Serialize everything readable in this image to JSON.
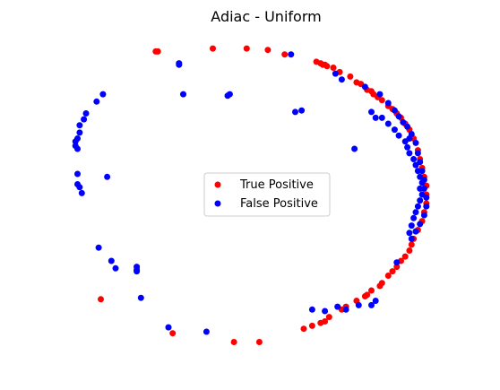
{
  "chart_data": {
    "type": "scatter",
    "title": "Adiac - Uniform",
    "xlabel": "",
    "ylabel": "",
    "axes_visible": false,
    "grid": false,
    "legend": {
      "placement": "center",
      "entries": [
        {
          "key": "tp",
          "label": "True Positive",
          "color": "#ff0000"
        },
        {
          "key": "fp",
          "label": "False Positive",
          "color": "#0000ff"
        }
      ]
    },
    "xlim": [
      -1.1,
      1.1
    ],
    "ylim": [
      -1.1,
      1.1
    ],
    "series": [
      {
        "key": "tp",
        "name": "True Positive",
        "color": "#ff0000",
        "points": [
          [
            -0.52,
            0.97
          ],
          [
            -0.51,
            0.97
          ],
          [
            -0.25,
            0.99
          ],
          [
            -0.09,
            0.99
          ],
          [
            0.01,
            0.98
          ],
          [
            0.09,
            0.95
          ],
          [
            0.24,
            0.9
          ],
          [
            0.26,
            0.89
          ],
          [
            0.27,
            0.88
          ],
          [
            0.28,
            0.88
          ],
          [
            0.29,
            0.87
          ],
          [
            0.32,
            0.86
          ],
          [
            0.35,
            0.83
          ],
          [
            0.4,
            0.8
          ],
          [
            0.43,
            0.76
          ],
          [
            0.45,
            0.75
          ],
          [
            0.48,
            0.71
          ],
          [
            0.5,
            0.7
          ],
          [
            0.51,
            0.68
          ],
          [
            0.53,
            0.66
          ],
          [
            0.55,
            0.64
          ],
          [
            0.58,
            0.6
          ],
          [
            0.6,
            0.58
          ],
          [
            0.62,
            0.55
          ],
          [
            0.64,
            0.52
          ],
          [
            0.66,
            0.48
          ],
          [
            0.68,
            0.44
          ],
          [
            0.7,
            0.38
          ],
          [
            0.72,
            0.3
          ],
          [
            0.73,
            0.24
          ],
          [
            0.74,
            0.18
          ],
          [
            0.75,
            0.12
          ],
          [
            0.76,
            0.06
          ],
          [
            0.76,
            0.0
          ],
          [
            0.76,
            -0.06
          ],
          [
            0.75,
            -0.12
          ],
          [
            0.74,
            -0.18
          ],
          [
            0.72,
            -0.24
          ],
          [
            0.7,
            -0.3
          ],
          [
            0.69,
            -0.34
          ],
          [
            0.68,
            -0.38
          ],
          [
            0.66,
            -0.42
          ],
          [
            0.64,
            -0.45
          ],
          [
            0.62,
            -0.49
          ],
          [
            0.6,
            -0.52
          ],
          [
            0.58,
            -0.55
          ],
          [
            0.55,
            -0.6
          ],
          [
            0.54,
            -0.62
          ],
          [
            0.5,
            -0.65
          ],
          [
            0.48,
            -0.68
          ],
          [
            0.47,
            -0.69
          ],
          [
            0.43,
            -0.72
          ],
          [
            0.38,
            -0.76
          ],
          [
            0.36,
            -0.78
          ],
          [
            0.3,
            -0.83
          ],
          [
            0.28,
            -0.86
          ],
          [
            0.26,
            -0.87
          ],
          [
            0.22,
            -0.89
          ],
          [
            0.18,
            -0.91
          ],
          [
            -0.15,
            -1.0
          ],
          [
            -0.03,
            -1.0
          ],
          [
            -0.44,
            -0.94
          ],
          [
            -0.78,
            -0.71
          ]
        ]
      },
      {
        "key": "fp",
        "name": "False Positive",
        "color": "#0000ff",
        "points": [
          [
            0.12,
            0.95
          ],
          [
            0.33,
            0.82
          ],
          [
            0.36,
            0.78
          ],
          [
            0.47,
            0.73
          ],
          [
            0.54,
            0.68
          ],
          [
            0.58,
            0.62
          ],
          [
            0.61,
            0.57
          ],
          [
            0.63,
            0.53
          ],
          [
            0.65,
            0.49
          ],
          [
            0.67,
            0.46
          ],
          [
            0.69,
            0.41
          ],
          [
            0.71,
            0.35
          ],
          [
            0.72,
            0.28
          ],
          [
            0.73,
            0.22
          ],
          [
            0.74,
            0.16
          ],
          [
            0.75,
            0.1
          ],
          [
            0.75,
            0.04
          ],
          [
            0.76,
            -0.02
          ],
          [
            0.76,
            -0.08
          ],
          [
            0.75,
            -0.14
          ],
          [
            0.73,
            -0.2
          ],
          [
            0.71,
            -0.25
          ],
          [
            0.69,
            -0.3
          ],
          [
            0.55,
            0.52
          ],
          [
            0.58,
            0.48
          ],
          [
            0.61,
            0.44
          ],
          [
            0.63,
            0.4
          ],
          [
            0.66,
            0.36
          ],
          [
            0.67,
            0.32
          ],
          [
            0.68,
            0.28
          ],
          [
            0.7,
            0.24
          ],
          [
            0.71,
            0.2
          ],
          [
            0.72,
            0.16
          ],
          [
            0.73,
            0.12
          ],
          [
            0.74,
            0.08
          ],
          [
            0.73,
            0.04
          ],
          [
            0.74,
            0.0
          ],
          [
            0.73,
            -0.04
          ],
          [
            0.72,
            -0.08
          ],
          [
            0.71,
            -0.12
          ],
          [
            0.7,
            -0.16
          ],
          [
            0.69,
            -0.21
          ],
          [
            0.68,
            -0.26
          ],
          [
            0.5,
            0.56
          ],
          [
            0.52,
            0.52
          ],
          [
            0.68,
            0.38
          ],
          [
            0.42,
            0.31
          ],
          [
            0.62,
            -0.46
          ],
          [
            0.52,
            -0.72
          ],
          [
            0.5,
            -0.75
          ],
          [
            0.44,
            -0.75
          ],
          [
            0.38,
            -0.78
          ],
          [
            0.34,
            -0.76
          ],
          [
            0.28,
            -0.79
          ],
          [
            0.22,
            -0.78
          ],
          [
            0.17,
            0.57
          ],
          [
            0.14,
            0.56
          ],
          [
            -0.17,
            0.68
          ],
          [
            -0.18,
            0.67
          ],
          [
            -0.39,
            0.68
          ],
          [
            -0.41,
            0.88
          ],
          [
            -0.41,
            0.89
          ],
          [
            -0.77,
            0.68
          ],
          [
            -0.8,
            0.63
          ],
          [
            -0.85,
            0.55
          ],
          [
            -0.86,
            0.51
          ],
          [
            -0.88,
            0.47
          ],
          [
            -0.88,
            0.42
          ],
          [
            -0.89,
            0.38
          ],
          [
            -0.9,
            0.36
          ],
          [
            -0.9,
            0.33
          ],
          [
            -0.89,
            0.31
          ],
          [
            -0.89,
            0.14
          ],
          [
            -0.89,
            0.07
          ],
          [
            -0.88,
            0.05
          ],
          [
            -0.87,
            0.01
          ],
          [
            -0.75,
            0.12
          ],
          [
            -0.79,
            -0.36
          ],
          [
            -0.73,
            -0.45
          ],
          [
            -0.71,
            -0.5
          ],
          [
            -0.61,
            -0.49
          ],
          [
            -0.61,
            -0.51
          ],
          [
            -0.61,
            -0.52
          ],
          [
            -0.59,
            -0.7
          ],
          [
            -0.46,
            -0.9
          ],
          [
            -0.28,
            -0.93
          ]
        ]
      }
    ]
  }
}
